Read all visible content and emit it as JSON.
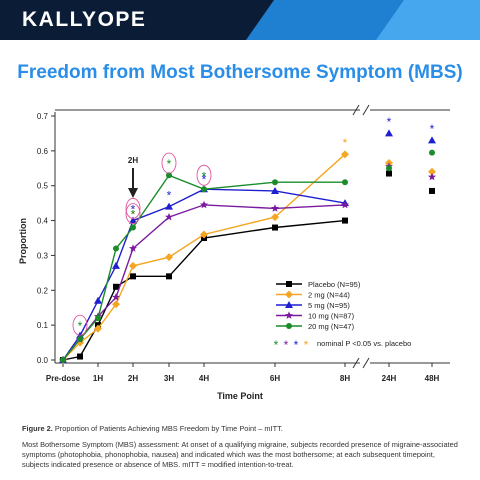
{
  "brand": {
    "logo_text": "KALLYOPE"
  },
  "page_title": "Freedom from Most Bothersome Symptom (MBS)",
  "chart_data": {
    "type": "line",
    "xlabel": "Time Point",
    "ylabel": "Proportion",
    "ylim": [
      0,
      0.7
    ],
    "yticks": [
      "0.0",
      "0.1",
      "0.2",
      "0.3",
      "0.4",
      "0.5",
      "0.6",
      "0.7"
    ],
    "categories": [
      "Pre-dose",
      "0.5H",
      "1H",
      "1.5H",
      "2H",
      "3H",
      "4H",
      "6H",
      "8H",
      "24H",
      "48H"
    ],
    "xtick_labels": [
      "Pre-dose",
      "1H",
      "2H",
      "3H",
      "4H",
      "6H",
      "8H",
      "24H",
      "48H"
    ],
    "axis_break": "between 8H and 24H",
    "grid": false,
    "legend_position": "bottom-right inside plot",
    "series": [
      {
        "name": "Placebo (N=95)",
        "color": "#000000",
        "marker": "square",
        "values": [
          0.0,
          0.01,
          0.1,
          0.21,
          0.24,
          0.24,
          0.35,
          0.38,
          0.4,
          0.535,
          0.485
        ]
      },
      {
        "name": "2 mg (N=44)",
        "color": "#f5a623",
        "marker": "diamond",
        "values": [
          0.0,
          0.05,
          0.09,
          0.16,
          0.27,
          0.295,
          0.36,
          0.41,
          0.59,
          0.565,
          0.54
        ]
      },
      {
        "name": "5 mg (N=95)",
        "color": "#1f1fd1",
        "marker": "triangle",
        "values": [
          0.0,
          0.07,
          0.17,
          0.27,
          0.4,
          0.44,
          0.49,
          0.485,
          0.45,
          0.65,
          0.63
        ]
      },
      {
        "name": "10 mg (N=87)",
        "color": "#7a1a9e",
        "marker": "star",
        "values": [
          0.0,
          0.06,
          0.125,
          0.18,
          0.32,
          0.41,
          0.445,
          0.435,
          0.445,
          0.555,
          0.525
        ]
      },
      {
        "name": "20 mg (N=47)",
        "color": "#1a8c2a",
        "marker": "circle",
        "values": [
          0.0,
          0.06,
          0.12,
          0.32,
          0.38,
          0.53,
          0.49,
          0.51,
          0.51,
          0.55,
          0.595
        ]
      }
    ],
    "significance_asterisks": [
      {
        "series": "20 mg (N=47)",
        "at": "0.5H",
        "value": 0.1,
        "circled": true
      },
      {
        "series": "2 mg (N=44)",
        "at": "2H",
        "value": 0.42
      },
      {
        "series": "20 mg (N=47)",
        "at": "2H",
        "value": 0.42,
        "circled": true
      },
      {
        "series": "5 mg (N=95)",
        "at": "2H",
        "value": 0.435,
        "circled": true
      },
      {
        "series": "20 mg (N=47)",
        "at": "3H",
        "value": 0.565,
        "circled": true
      },
      {
        "series": "5 mg (N=95)",
        "at": "3H",
        "value": 0.475
      },
      {
        "series": "20 mg (N=47)",
        "at": "4H",
        "value": 0.53,
        "circled": true
      },
      {
        "series": "5 mg (N=95)",
        "at": "4H",
        "value": 0.52
      },
      {
        "series": "2 mg (N=44)",
        "at": "8H",
        "value": 0.625
      },
      {
        "series": "5 mg (N=95)",
        "at": "24H",
        "value": 0.685
      },
      {
        "series": "5 mg (N=95)",
        "at": "48H",
        "value": 0.665
      }
    ],
    "annotation": {
      "text": "2H",
      "at": "2H"
    },
    "significance_legend": {
      "colors": [
        "#1a8c2a",
        "#7a1a9e",
        "#1f1fd1",
        "#f5a623"
      ],
      "symbol": "*",
      "text": "nominal P <0.05 vs. placebo"
    }
  },
  "caption": {
    "figure_label": "Figure 2.",
    "figure_text": "Proportion of Patients Achieving MBS Freedom by Time Point – mITT.",
    "body": "Most Bothersome Symptom (MBS) assessment: At onset of a qualifying migraine, subjects recorded presence of migraine-associated symptoms (photophobia, phonophobia, nausea) and indicated which was the most bothersome; at each subsequent timepoint, subjects indicated presence or absence of MBS. mITT = modified intention-to-treat."
  }
}
